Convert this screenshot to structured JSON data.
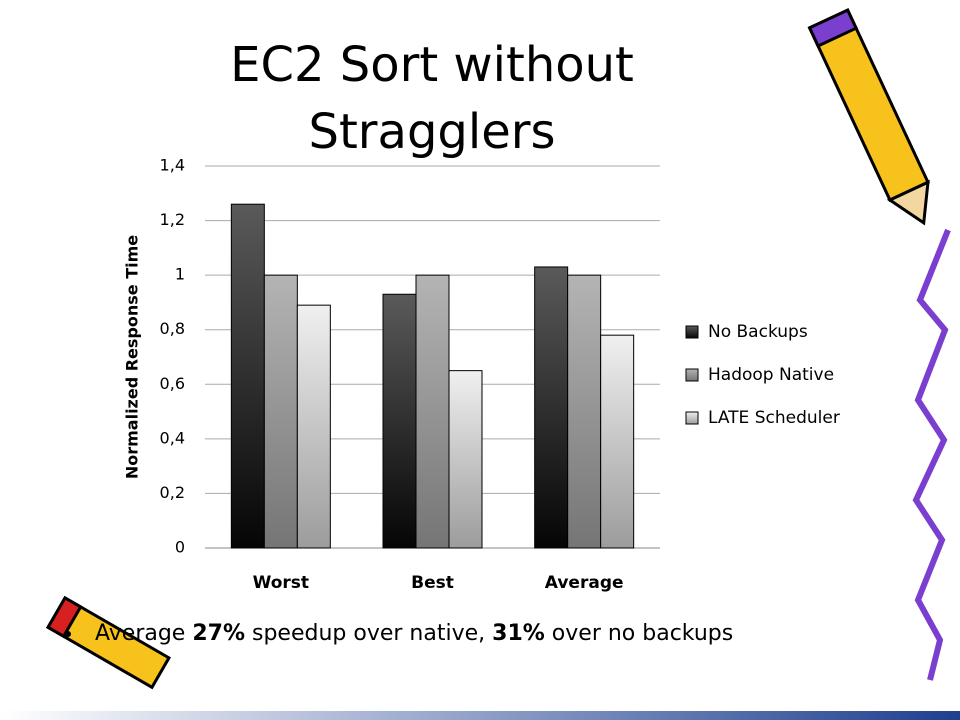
{
  "chart_data": {
    "type": "bar",
    "title": "EC2 Sort without Stragglers",
    "y_label": "Normalized Response Time",
    "categories": [
      "Worst",
      "Best",
      "Average"
    ],
    "series": [
      {
        "name": "No Backups",
        "color": "#5a5a5a",
        "values": [
          1.26,
          0.93,
          1.03
        ]
      },
      {
        "name": "Hadoop Native",
        "color": "#b4b4b4",
        "values": [
          1.0,
          1.0,
          1.0
        ]
      },
      {
        "name": "LATE Scheduler",
        "color": "#f0f0f0",
        "values": [
          0.89,
          0.65,
          0.78
        ]
      }
    ],
    "ylim": [
      0,
      1.4
    ],
    "yticks": [
      0,
      {
        "value": 0.2,
        "label": "0,2"
      },
      {
        "value": 0.4,
        "label": "0,4"
      },
      {
        "value": 0.6,
        "label": "0,6"
      },
      {
        "value": 0.8,
        "label": "0,8"
      },
      1,
      {
        "value": 1.2,
        "label": "1,2"
      },
      {
        "value": 1.4,
        "label": "1,4"
      }
    ],
    "grid": true,
    "legend": "right"
  },
  "note": {
    "parts": [
      "Average ",
      "27%",
      " speedup over native, ",
      "31%",
      " over no backups"
    ]
  }
}
